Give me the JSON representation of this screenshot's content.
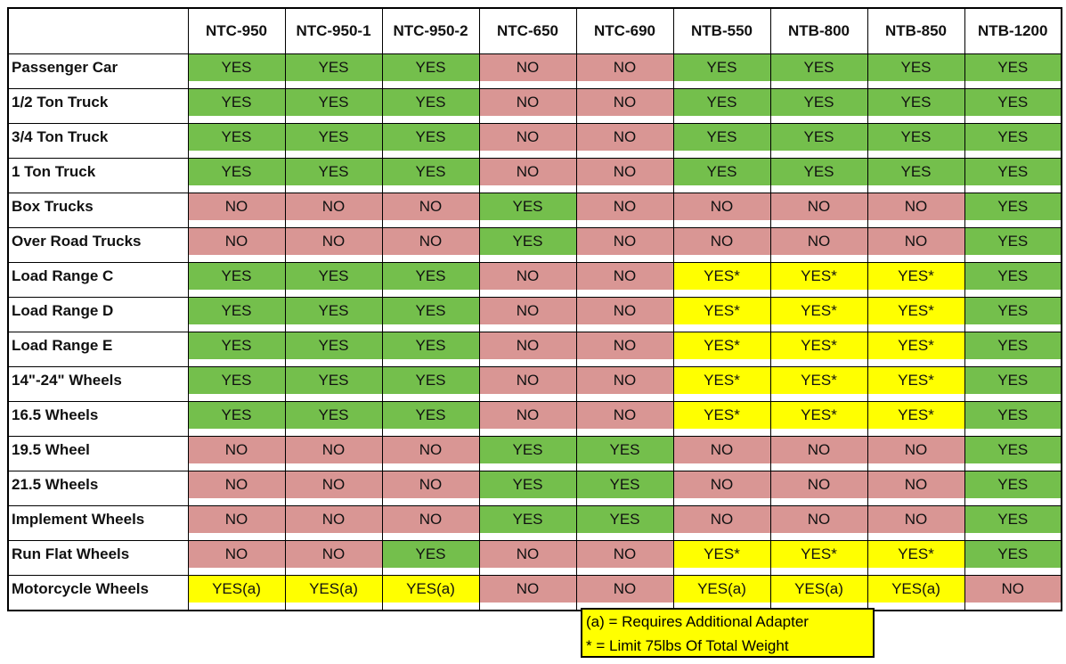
{
  "table": {
    "header": [
      "NTC-950",
      "NTC-950-1",
      "NTC-950-2",
      "NTC-650",
      "NTC-690",
      "NTB-550",
      "NTB-800",
      "NTB-850",
      "NTB-1200"
    ],
    "rows": [
      [
        "Passenger Car",
        "YES",
        "YES",
        "YES",
        "NO",
        "NO",
        "YES",
        "YES",
        "YES",
        "YES"
      ],
      [
        "1/2 Ton Truck",
        "YES",
        "YES",
        "YES",
        "NO",
        "NO",
        "YES",
        "YES",
        "YES",
        "YES"
      ],
      [
        "3/4 Ton Truck",
        "YES",
        "YES",
        "YES",
        "NO",
        "NO",
        "YES",
        "YES",
        "YES",
        "YES"
      ],
      [
        "1 Ton Truck",
        "YES",
        "YES",
        "YES",
        "NO",
        "NO",
        "YES",
        "YES",
        "YES",
        "YES"
      ],
      [
        "Box Trucks",
        "NO",
        "NO",
        "NO",
        "YES",
        "NO",
        "NO",
        "NO",
        "NO",
        "YES"
      ],
      [
        "Over Road Trucks",
        "NO",
        "NO",
        "NO",
        "YES",
        "NO",
        "NO",
        "NO",
        "NO",
        "YES"
      ],
      [
        "Load Range C",
        "YES",
        "YES",
        "YES",
        "NO",
        "NO",
        "YES*",
        "YES*",
        "YES*",
        "YES"
      ],
      [
        "Load Range D",
        "YES",
        "YES",
        "YES",
        "NO",
        "NO",
        "YES*",
        "YES*",
        "YES*",
        "YES"
      ],
      [
        "Load Range E",
        "YES",
        "YES",
        "YES",
        "NO",
        "NO",
        "YES*",
        "YES*",
        "YES*",
        "YES"
      ],
      [
        "14\"-24\" Wheels",
        "YES",
        "YES",
        "YES",
        "NO",
        "NO",
        "YES*",
        "YES*",
        "YES*",
        "YES"
      ],
      [
        "16.5 Wheels",
        "YES",
        "YES",
        "YES",
        "NO",
        "NO",
        "YES*",
        "YES*",
        "YES*",
        "YES"
      ],
      [
        "19.5 Wheel",
        "NO",
        "NO",
        "NO",
        "YES",
        "YES",
        "NO",
        "NO",
        "NO",
        "YES"
      ],
      [
        "21.5 Wheels",
        "NO",
        "NO",
        "NO",
        "YES",
        "YES",
        "NO",
        "NO",
        "NO",
        "YES"
      ],
      [
        "Implement Wheels",
        "NO",
        "NO",
        "NO",
        "YES",
        "YES",
        "NO",
        "NO",
        "NO",
        "YES"
      ],
      [
        "Run Flat Wheels",
        "NO",
        "NO",
        "YES",
        "NO",
        "NO",
        "YES*",
        "YES*",
        "YES*",
        "YES"
      ],
      [
        "Motorcycle Wheels",
        "YES(a)",
        "YES(a)",
        "YES(a)",
        "NO",
        "NO",
        "YES(a)",
        "YES(a)",
        "YES(a)",
        "NO"
      ]
    ],
    "cell_colors": {
      "YES": "#74bf4c",
      "NO": "#d99694",
      "YES*": "#ffff00",
      "YES(a)": "#ffff00"
    }
  },
  "notes": [
    "(a) = Requires Additional Adapter",
    "* = Limit 75lbs Of Total Weight"
  ],
  "notes_color": "#ffff00"
}
